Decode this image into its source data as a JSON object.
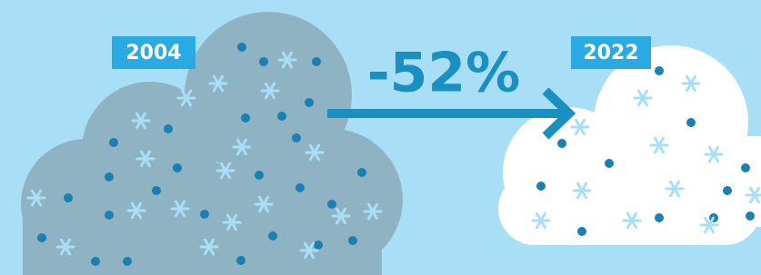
{
  "left": {
    "year": "2004"
  },
  "right": {
    "year": "2022"
  },
  "change": {
    "label": "-52%"
  }
}
